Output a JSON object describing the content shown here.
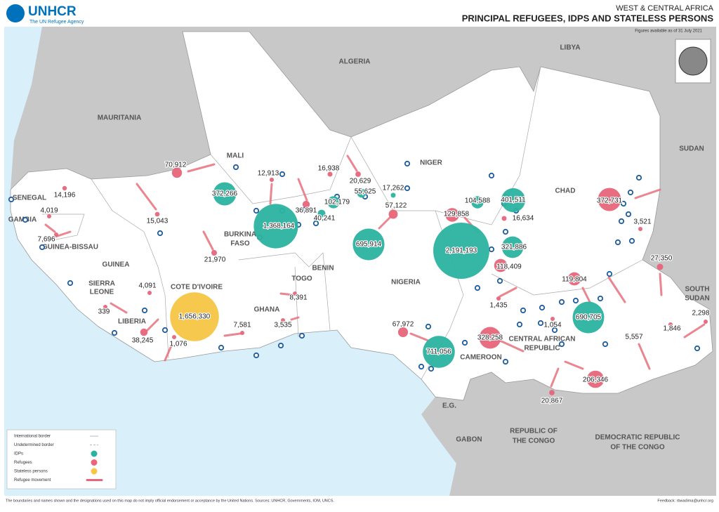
{
  "header": {
    "org": "UNHCR",
    "tagline": "The UN Refugee Agency",
    "region": "WEST & CENTRAL AFRICA",
    "title": "PRINCIPAL REFUGEES, IDPS AND STATELESS PERSONS",
    "date": "Figures available as of 31 July 2021"
  },
  "countries": [
    "MAURITANIA",
    "ALGERIA",
    "LIBYA",
    "MALI",
    "NIGER",
    "CHAD",
    "SUDAN",
    "SENEGAL",
    "GAMBIA",
    "GUINEA-BISSAU",
    "GUINEA",
    "SIERRA",
    "LEONE",
    "LIBERIA",
    "COTE D'IVOIRE",
    "BURKINA",
    "FASO",
    "GHANA",
    "TOGO",
    "BENIN",
    "NIGERIA",
    "CAMEROON",
    "CENTRAL AFRICAN",
    "REPUBLIC",
    "E.G.",
    "GABON",
    "REPUBLIC OF",
    "THE CONGO",
    "DEMOCRATIC REPUBLIC",
    "OF THE CONGO",
    "SOUTH",
    "SUDAN"
  ],
  "idps": [
    {
      "value": 372266,
      "label": "372,266"
    },
    {
      "value": 1368164,
      "label": "1,368,164"
    },
    {
      "value": 102179,
      "label": "102,179"
    },
    {
      "value": 55625,
      "label": "55,625"
    },
    {
      "value": 40241,
      "label": "40,241"
    },
    {
      "value": 17262,
      "label": "17,262"
    },
    {
      "value": 695914,
      "label": "695,914"
    },
    {
      "value": 104588,
      "label": "104,588"
    },
    {
      "value": 401511,
      "label": "401,511"
    },
    {
      "value": 2191193,
      "label": "2,191,193"
    },
    {
      "value": 321886,
      "label": "321,886"
    },
    {
      "value": 690705,
      "label": "690,705"
    },
    {
      "value": 711056,
      "label": "711,056"
    }
  ],
  "refugees": [
    {
      "value": 70912,
      "label": "70,912"
    },
    {
      "value": 14196,
      "label": "14,196"
    },
    {
      "value": 4019,
      "label": "4,019"
    },
    {
      "value": 7696,
      "label": "7,696"
    },
    {
      "value": 15043,
      "label": "15,043"
    },
    {
      "value": 12913,
      "label": "12,913"
    },
    {
      "value": 16938,
      "label": "16,938"
    },
    {
      "value": 20629,
      "label": "20,629"
    },
    {
      "value": 36891,
      "label": "36,891"
    },
    {
      "value": 57122,
      "label": "57,122"
    },
    {
      "value": 129858,
      "label": "129,858"
    },
    {
      "value": 16634,
      "label": "16,634"
    },
    {
      "value": 118409,
      "label": "118,409"
    },
    {
      "value": 372731,
      "label": "372,731"
    },
    {
      "value": 3521,
      "label": "3,521"
    },
    {
      "value": 27350,
      "label": "27,350"
    },
    {
      "value": 21970,
      "label": "21,970"
    },
    {
      "value": 4091,
      "label": "4,091"
    },
    {
      "value": 339,
      "label": "339"
    },
    {
      "value": 8391,
      "label": "8,391"
    },
    {
      "value": 7581,
      "label": "7,581"
    },
    {
      "value": 3535,
      "label": "3,535"
    },
    {
      "value": 38245,
      "label": "38,245"
    },
    {
      "value": 1076,
      "label": "1,076"
    },
    {
      "value": 1435,
      "label": "1,435"
    },
    {
      "value": 1054,
      "label": "1,054"
    },
    {
      "value": 119804,
      "label": "119,804"
    },
    {
      "value": 67972,
      "label": "67,972"
    },
    {
      "value": 328258,
      "label": "328,258"
    },
    {
      "value": 206346,
      "label": "206,346"
    },
    {
      "value": 20867,
      "label": "20,867"
    },
    {
      "value": 5557,
      "label": "5,557"
    },
    {
      "value": 1846,
      "label": "1,846"
    },
    {
      "value": 2298,
      "label": "2,298"
    }
  ],
  "stateless": [
    {
      "value": 1656330,
      "label": "1,656,330"
    }
  ],
  "legend": [
    "International border",
    "Undetermined border",
    "IDPs",
    "Refugees",
    "Stateless persons",
    "Refugee movement"
  ],
  "footer": {
    "disclaimer": "The boundaries and names shown and the designations used on this map do not imply official endorsement or acceptance by the United Nations. Sources: UNHCR, Governments, IOM, UNCS.",
    "feedback": "Feedback: rbwadima@unhcr.org"
  }
}
